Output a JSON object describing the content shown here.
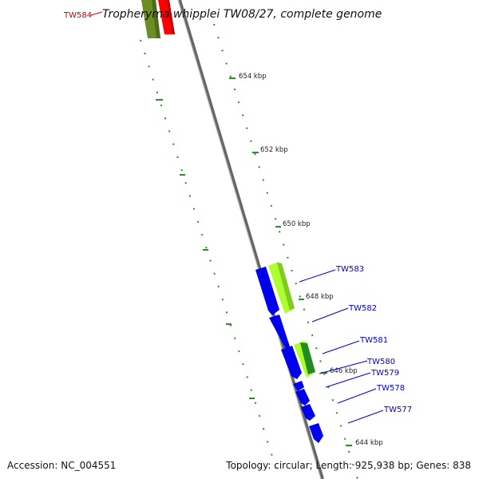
{
  "title": "Tropheryma whipplei TW08/27, complete genome",
  "colors": {
    "forward_gene": "#0000ee",
    "reverse_gene_light": "#adff2f",
    "reverse_gene_dark": "#228b22",
    "olive_gene": "#6b8e23",
    "red_gene": "#ff0000",
    "tick": "#2e8b2e",
    "backbone": "#888888"
  },
  "highlight_gene": "TW584",
  "genes": [
    {
      "label": "TW583",
      "strand": "reverse",
      "color": "light-green"
    },
    {
      "label": "TW582",
      "strand": "forward",
      "color": "blue"
    },
    {
      "label": "TW581",
      "strand": "forward",
      "color": "blue"
    },
    {
      "label": "TW580",
      "strand": "reverse",
      "color": "dark-green"
    },
    {
      "label": "TW579",
      "strand": "forward",
      "color": "blue"
    },
    {
      "label": "TW578",
      "strand": "forward",
      "color": "blue"
    },
    {
      "label": "TW577",
      "strand": "forward",
      "color": "blue"
    }
  ],
  "ticks": [
    "654 kbp",
    "652 kbp",
    "650 kbp",
    "648 kbp",
    "646 kbp",
    "644 kbp"
  ],
  "footer": {
    "accession": "Accession: NC_004551",
    "summary": "Topology: circular; Length: 925,938 bp; Genes: 838"
  }
}
